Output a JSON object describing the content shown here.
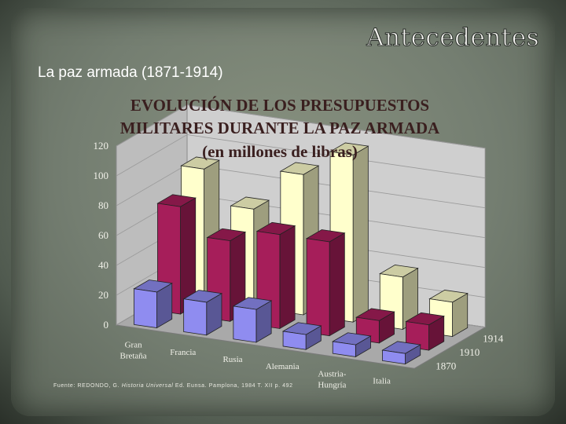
{
  "slide": {
    "title": "Antecedentes",
    "subtitle": "La paz armada (1871-1914)"
  },
  "chart_data": {
    "type": "bar",
    "title_lines": [
      "EVOLUCIÓN DE LOS PRESUPUESTOS",
      "MILITARES DURANTE LA PAZ ARMADA",
      "(en millones de libras)"
    ],
    "categories": [
      "Gran Bretaña",
      "Francia",
      "Rusia",
      "Alemania",
      "Austria-Hungría",
      "Italia"
    ],
    "category_labels": [
      [
        "Gran",
        "Bretaña"
      ],
      [
        "Francia"
      ],
      [
        "Rusia"
      ],
      [
        "Alemania"
      ],
      [
        "Austria-",
        "Hungría"
      ],
      [
        "Italia"
      ]
    ],
    "series": [
      {
        "name": "1870",
        "values": [
          24,
          22,
          22,
          10,
          8,
          7
        ],
        "color": "#8f8cf0"
      },
      {
        "name": "1910",
        "values": [
          72,
          54,
          63,
          63,
          15,
          17
        ],
        "color": "#a61e5a"
      },
      {
        "name": "1914",
        "values": [
          88,
          66,
          94,
          112,
          35,
          23
        ],
        "color": "#ffffcc"
      }
    ],
    "ylim": [
      0,
      120
    ],
    "yticks": [
      0,
      20,
      40,
      60,
      80,
      100,
      120
    ],
    "grid": true,
    "chart_style": "3d-bar"
  },
  "source": {
    "prefix": "Fuente: REDONDO, G.",
    "book": "Historia Universal",
    "suffix": "Ed. Eunsa. Pamplona, 1984 T. XII p. 492"
  }
}
